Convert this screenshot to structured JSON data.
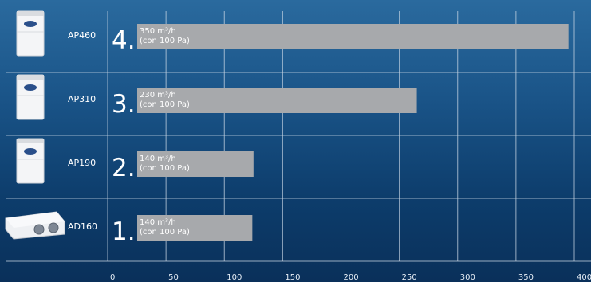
{
  "chart_data": {
    "type": "bar",
    "orientation": "horizontal",
    "title": "",
    "xlabel": "",
    "ylabel": "",
    "xlim": [
      0,
      400
    ],
    "x_ticks": [
      0,
      50,
      100,
      150,
      200,
      250,
      300,
      350,
      400
    ],
    "grid": true,
    "categories": [
      {
        "model": "AP460",
        "rank": "4.",
        "value": 395,
        "label_line1": "350 m³/h",
        "label_line2": "(con 100 Pa)"
      },
      {
        "model": "AP310",
        "rank": "3.",
        "value": 265,
        "label_line1": "230 m³/h",
        "label_line2": "(con  100 Pa)"
      },
      {
        "model": "AP190",
        "rank": "2.",
        "value": 125,
        "label_line1": "140 m³/h",
        "label_line2": "(con  100 Pa)"
      },
      {
        "model": "AD160",
        "rank": "1.",
        "value": 124,
        "label_line1": "140 m³/h",
        "label_line2": "(con  100 Pa)"
      }
    ],
    "colors": {
      "bar": "#a7a9ac",
      "grid": "#c9d6e4",
      "background_top": "#2a6a9e",
      "background_bottom": "#0a305a"
    },
    "product_icons": [
      "upright-unit-icon",
      "upright-unit-icon",
      "upright-unit-icon",
      "flat-unit-icon"
    ]
  }
}
